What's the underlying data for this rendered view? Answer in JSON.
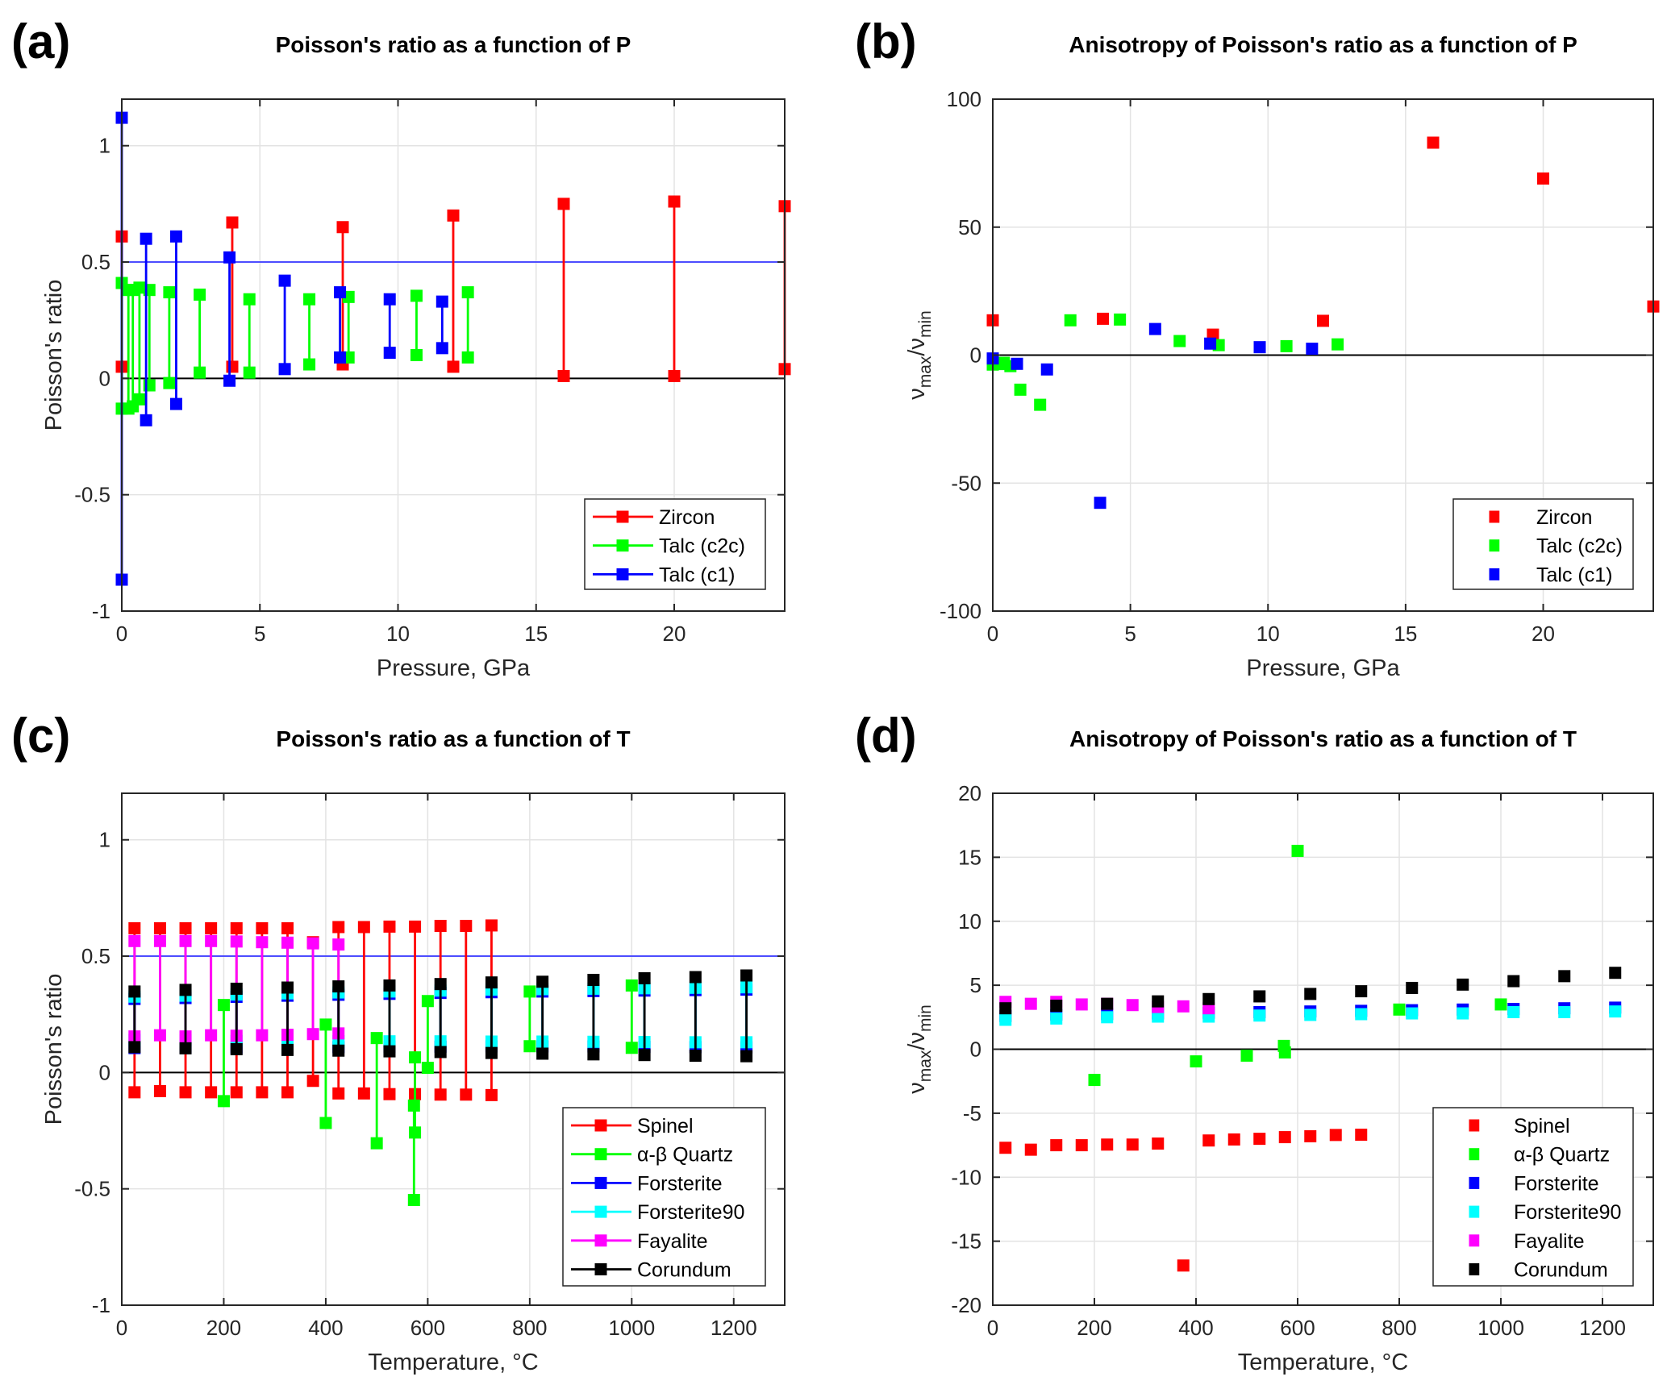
{
  "chart_data": [
    {
      "panel_label": "(a)",
      "type": "stem-range",
      "title": "Poisson's ratio as a function of P",
      "xlabel": "Pressure, GPa",
      "ylabel": [
        "Poisson's ratio"
      ],
      "xlim": [
        0,
        24
      ],
      "ylim": [
        -1,
        1.2
      ],
      "xticks": [
        0,
        5,
        10,
        15,
        20
      ],
      "xtick_labels": [
        "0",
        "5",
        "10",
        "15",
        "20"
      ],
      "yticks": [
        -1,
        -0.5,
        0,
        0.5,
        1
      ],
      "ytick_labels": [
        "-1",
        "-0.5",
        "0",
        "0.5",
        "1"
      ],
      "grid": true,
      "legend": "bottom-right",
      "legend_style": "line-marker",
      "reference_lines": [
        {
          "y": 0.5,
          "color": "#4d4dff"
        },
        {
          "y": 0,
          "color": "#000000"
        }
      ],
      "series": [
        {
          "name": "Zircon",
          "color": "#ff0000",
          "x": [
            0,
            4,
            8,
            12,
            16,
            20,
            24
          ],
          "max": [
            0.61,
            0.67,
            0.65,
            0.7,
            0.75,
            0.76,
            0.74
          ],
          "min": [
            0.05,
            0.05,
            0.06,
            0.05,
            0.01,
            0.01,
            0.04
          ]
        },
        {
          "name": "Talc (c2c)",
          "color": "#00ff00",
          "x": [
            0,
            0.24,
            0.4,
            0.64,
            1.0,
            1.72,
            2.82,
            4.62,
            6.79,
            8.21,
            10.67,
            12.53
          ],
          "max": [
            0.41,
            0.38,
            0.38,
            0.39,
            0.38,
            0.37,
            0.36,
            0.34,
            0.34,
            0.35,
            0.355,
            0.37
          ],
          "min": [
            -0.13,
            -0.13,
            -0.12,
            -0.09,
            -0.03,
            -0.02,
            0.025,
            0.025,
            0.06,
            0.09,
            0.1,
            0.09
          ]
        },
        {
          "name": "Talc (c1)",
          "color": "#0000ff",
          "x": [
            0,
            0.88,
            1.97,
            3.9,
            5.9,
            7.9,
            9.7,
            11.6
          ],
          "max": [
            1.12,
            0.6,
            0.61,
            0.52,
            0.42,
            0.37,
            0.34,
            0.33
          ],
          "min": [
            -0.865,
            -0.18,
            -0.11,
            -0.01,
            0.04,
            0.09,
            0.11,
            0.13
          ]
        }
      ]
    },
    {
      "panel_label": "(b)",
      "type": "scatter",
      "title": "Anisotropy of Poisson's ratio as a function of P",
      "xlabel": "Pressure, GPa",
      "ylabel": [
        "ν",
        "max",
        "/ν",
        "min"
      ],
      "xlim": [
        0,
        24
      ],
      "ylim": [
        -100,
        100
      ],
      "xticks": [
        0,
        5,
        10,
        15,
        20
      ],
      "xtick_labels": [
        "0",
        "5",
        "10",
        "15",
        "20"
      ],
      "yticks": [
        -100,
        -50,
        0,
        50,
        100
      ],
      "ytick_labels": [
        "-100",
        "-50",
        "0",
        "50",
        "100"
      ],
      "grid": true,
      "legend": "bottom-right",
      "legend_style": "marker",
      "reference_lines": [
        {
          "y": 0,
          "color": "#000000"
        }
      ],
      "series": [
        {
          "name": "Zircon",
          "color": "#ff0000",
          "x": [
            0,
            4,
            8,
            12,
            16,
            20,
            24
          ],
          "y": [
            13.6,
            14.2,
            8,
            13.4,
            83,
            69,
            19
          ]
        },
        {
          "name": "Talc (c2c)",
          "color": "#00ff00",
          "x": [
            0,
            0.24,
            0.4,
            0.64,
            1.0,
            1.72,
            2.82,
            4.62,
            6.79,
            8.21,
            10.67,
            12.53
          ],
          "y": [
            -3.7,
            -3.5,
            -3,
            -4.3,
            -13.5,
            -19.4,
            13.6,
            13.9,
            5.5,
            3.9,
            3.5,
            4.2
          ]
        },
        {
          "name": "Talc (c1)",
          "color": "#0000ff",
          "x": [
            0,
            0.88,
            1.97,
            3.9,
            5.9,
            7.9,
            9.7,
            11.6
          ],
          "y": [
            -1.3,
            -3.4,
            -5.6,
            -57.7,
            10.2,
            4.5,
            3.1,
            2.5
          ]
        }
      ]
    },
    {
      "panel_label": "(c)",
      "type": "stem-range",
      "title": "Poisson's ratio as a function of T",
      "xlabel": "Temperature, °C",
      "ylabel": [
        "Poisson's ratio"
      ],
      "xlim": [
        0,
        1300
      ],
      "ylim": [
        -1,
        1.2
      ],
      "xticks": [
        0,
        200,
        400,
        600,
        800,
        1000,
        1200
      ],
      "xtick_labels": [
        "0",
        "200",
        "400",
        "600",
        "800",
        "1000",
        "1200"
      ],
      "yticks": [
        -1,
        -0.5,
        0,
        0.5,
        1
      ],
      "ytick_labels": [
        "-1",
        "-0.5",
        "0",
        "0.5",
        "1"
      ],
      "grid": true,
      "legend": "bottom-right",
      "legend_style": "line-marker",
      "reference_lines": [
        {
          "y": 0.5,
          "color": "#4d4dff"
        },
        {
          "y": 0,
          "color": "#000000"
        }
      ],
      "series": [
        {
          "name": "Spinel",
          "color": "#ff0000",
          "x": [
            25,
            75,
            125,
            175,
            225,
            275,
            325,
            375,
            425,
            475,
            525,
            575,
            625,
            675,
            725
          ],
          "max": [
            0.62,
            0.62,
            0.62,
            0.62,
            0.62,
            0.62,
            0.62,
            0.56,
            0.625,
            0.625,
            0.627,
            0.627,
            0.63,
            0.63,
            0.632
          ],
          "min": [
            -0.085,
            -0.08,
            -0.085,
            -0.085,
            -0.085,
            -0.085,
            -0.085,
            -0.036,
            -0.09,
            -0.09,
            -0.093,
            -0.093,
            -0.095,
            -0.095,
            -0.097
          ]
        },
        {
          "name": "α-β Quartz",
          "color": "#00ff00",
          "x": [
            200,
            400,
            500,
            573,
            575,
            600,
            800,
            1000
          ],
          "max": [
            0.29,
            0.206,
            0.148,
            -0.142,
            0.065,
            0.307,
            0.348,
            0.374
          ],
          "min": [
            -0.123,
            -0.217,
            -0.304,
            -0.548,
            -0.258,
            0.02,
            0.113,
            0.106
          ]
        },
        {
          "name": "Forsterite",
          "color": "#0000ff",
          "x": [
            25,
            125,
            225,
            325,
            425,
            525,
            625,
            725,
            825,
            925,
            1025,
            1125,
            1225
          ],
          "max": [
            0.316,
            0.32,
            0.325,
            0.33,
            0.334,
            0.338,
            0.342,
            0.345,
            0.348,
            0.35,
            0.352,
            0.354,
            0.356
          ],
          "min": [
            0.105,
            0.106,
            0.107,
            0.108,
            0.109,
            0.11,
            0.111,
            0.112,
            0.112,
            0.112,
            0.11,
            0.109,
            0.108
          ]
        },
        {
          "name": "Forsterite90",
          "color": "#00ffff",
          "x": [
            25,
            125,
            225,
            325,
            425,
            525,
            625,
            725,
            825,
            925,
            1025,
            1125,
            1225
          ],
          "max": [
            0.326,
            0.33,
            0.335,
            0.34,
            0.344,
            0.348,
            0.352,
            0.356,
            0.358,
            0.36,
            0.362,
            0.364,
            0.366
          ],
          "min": [
            0.14,
            0.138,
            0.136,
            0.135,
            0.135,
            0.134,
            0.134,
            0.133,
            0.133,
            0.132,
            0.131,
            0.13,
            0.13
          ]
        },
        {
          "name": "Fayalite",
          "color": "#ff00ff",
          "x": [
            25,
            75,
            125,
            175,
            225,
            275,
            325,
            375,
            425
          ],
          "max": [
            0.565,
            0.565,
            0.565,
            0.565,
            0.563,
            0.56,
            0.558,
            0.555,
            0.55
          ],
          "min": [
            0.155,
            0.16,
            0.155,
            0.16,
            0.158,
            0.16,
            0.162,
            0.165,
            0.168
          ]
        },
        {
          "name": "Corundum",
          "color": "#000000",
          "x": [
            25,
            125,
            225,
            325,
            425,
            525,
            625,
            725,
            825,
            925,
            1025,
            1125,
            1225
          ],
          "max": [
            0.348,
            0.355,
            0.36,
            0.365,
            0.37,
            0.374,
            0.38,
            0.387,
            0.39,
            0.398,
            0.405,
            0.41,
            0.417
          ],
          "min": [
            0.109,
            0.104,
            0.1,
            0.097,
            0.094,
            0.091,
            0.088,
            0.084,
            0.081,
            0.078,
            0.075,
            0.072,
            0.07
          ]
        }
      ]
    },
    {
      "panel_label": "(d)",
      "type": "scatter",
      "title": "Anisotropy of Poisson's ratio as a function of T",
      "xlabel": "Temperature, °C",
      "ylabel": [
        "ν",
        "max",
        "/ν",
        "min"
      ],
      "xlim": [
        0,
        1300
      ],
      "ylim": [
        -20,
        20
      ],
      "xticks": [
        0,
        200,
        400,
        600,
        800,
        1000,
        1200
      ],
      "xtick_labels": [
        "0",
        "200",
        "400",
        "600",
        "800",
        "1000",
        "1200"
      ],
      "yticks": [
        -20,
        -15,
        -10,
        -5,
        0,
        5,
        10,
        15,
        20
      ],
      "ytick_labels": [
        "-20",
        "-15",
        "-10",
        "-5",
        "0",
        "5",
        "10",
        "15",
        "20"
      ],
      "grid": true,
      "legend": "bottom-right",
      "legend_style": "marker",
      "reference_lines": [
        {
          "y": 0,
          "color": "#000000"
        }
      ],
      "series": [
        {
          "name": "Spinel",
          "color": "#ff0000",
          "x": [
            25,
            75,
            125,
            175,
            225,
            275,
            325,
            375,
            425,
            475,
            525,
            575,
            625,
            675,
            725
          ],
          "y": [
            -7.7,
            -7.85,
            -7.5,
            -7.5,
            -7.45,
            -7.45,
            -7.37,
            -16.9,
            -7.13,
            -7.05,
            -7.0,
            -6.87,
            -6.8,
            -6.7,
            -6.68
          ]
        },
        {
          "name": "α-β Quartz",
          "color": "#00ff00",
          "x": [
            200,
            400,
            500,
            573,
            575,
            600,
            800,
            1000
          ],
          "y": [
            -2.4,
            -0.95,
            -0.5,
            0.26,
            -0.25,
            15.5,
            3.1,
            3.5
          ]
        },
        {
          "name": "Forsterite",
          "color": "#0000ff",
          "x": [
            25,
            125,
            225,
            325,
            425,
            525,
            625,
            725,
            825,
            925,
            1025,
            1125,
            1225
          ],
          "y": [
            2.6,
            2.7,
            2.75,
            2.8,
            2.85,
            2.9,
            2.95,
            3.0,
            3.05,
            3.1,
            3.15,
            3.2,
            3.25
          ]
        },
        {
          "name": "Forsterite90",
          "color": "#00ffff",
          "x": [
            25,
            125,
            225,
            325,
            425,
            525,
            625,
            725,
            825,
            925,
            1025,
            1125,
            1225
          ],
          "y": [
            2.3,
            2.4,
            2.5,
            2.55,
            2.55,
            2.63,
            2.68,
            2.74,
            2.8,
            2.8,
            2.9,
            2.9,
            2.95
          ]
        },
        {
          "name": "Fayalite",
          "color": "#ff00ff",
          "x": [
            25,
            75,
            125,
            175,
            225,
            275,
            325,
            375,
            425
          ],
          "y": [
            3.7,
            3.55,
            3.7,
            3.5,
            3.55,
            3.45,
            3.3,
            3.35,
            3.2
          ]
        },
        {
          "name": "Corundum",
          "color": "#000000",
          "x": [
            25,
            125,
            225,
            325,
            425,
            525,
            625,
            725,
            825,
            925,
            1025,
            1125,
            1225
          ],
          "y": [
            3.2,
            3.4,
            3.55,
            3.74,
            3.92,
            4.13,
            4.32,
            4.53,
            4.79,
            5.05,
            5.32,
            5.71,
            5.97
          ]
        }
      ]
    }
  ]
}
